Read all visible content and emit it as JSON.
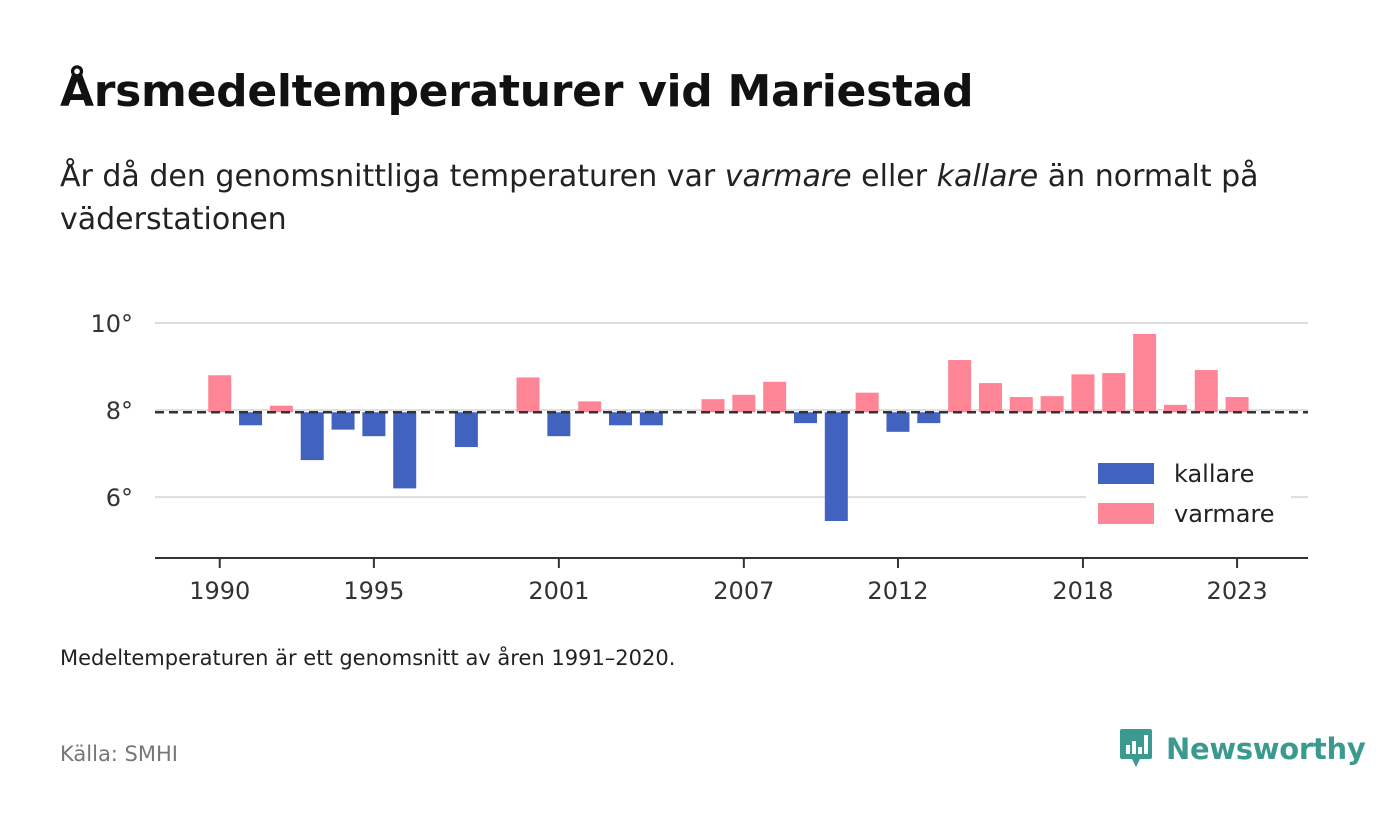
{
  "header": {
    "title": "Årsmedeltemperaturer vid Mariestad",
    "subtitle_part1": "År då den genomsnittliga temperaturen var ",
    "subtitle_em1": "varmare",
    "subtitle_part2": " eller ",
    "subtitle_em2": "kallare",
    "subtitle_part3": " än normalt på väderstationen"
  },
  "footer": {
    "note": "Medeltemperaturen är ett genomsnitt av åren 1991–2020.",
    "source": "Källa: SMHI",
    "brand": "Newsworthy"
  },
  "colors": {
    "kallare": "#4262bf",
    "varmare": "#fe8595",
    "reference_line": "#333333",
    "grid": "#dddddd",
    "brand": "#3a9a8f"
  },
  "chart_data": {
    "type": "bar",
    "baseline": 7.95,
    "y_ticks": [
      {
        "value": 6,
        "label": "6°"
      },
      {
        "value": 8,
        "label": "8°"
      },
      {
        "value": 10,
        "label": "10°"
      }
    ],
    "ylim": [
      4.6,
      10.3
    ],
    "x_ticks": [
      1990,
      1995,
      2001,
      2007,
      2012,
      2018,
      2023
    ],
    "x_tick_labels": [
      "1990",
      "1995",
      "2001",
      "2007",
      "2012",
      "2018",
      "2023"
    ],
    "xlim": [
      1987.9,
      2025.3
    ],
    "grid": true,
    "legend_position": "bottom-right",
    "series": [
      {
        "name": "kallare",
        "color_key": "kallare"
      },
      {
        "name": "varmare",
        "color_key": "varmare"
      }
    ],
    "years": [
      1990,
      1991,
      1992,
      1993,
      1994,
      1995,
      1996,
      1998,
      2000,
      2001,
      2002,
      2003,
      2004,
      2006,
      2007,
      2008,
      2009,
      2010,
      2011,
      2012,
      2013,
      2014,
      2015,
      2016,
      2017,
      2018,
      2019,
      2020,
      2021,
      2022,
      2023
    ],
    "values": [
      8.8,
      7.65,
      8.1,
      6.85,
      7.55,
      7.4,
      6.2,
      7.15,
      8.75,
      7.4,
      8.2,
      7.65,
      7.65,
      8.25,
      8.35,
      8.65,
      7.7,
      5.45,
      8.4,
      7.5,
      7.7,
      9.15,
      8.62,
      8.3,
      8.32,
      8.82,
      8.85,
      9.75,
      8.12,
      8.92,
      8.3
    ]
  }
}
